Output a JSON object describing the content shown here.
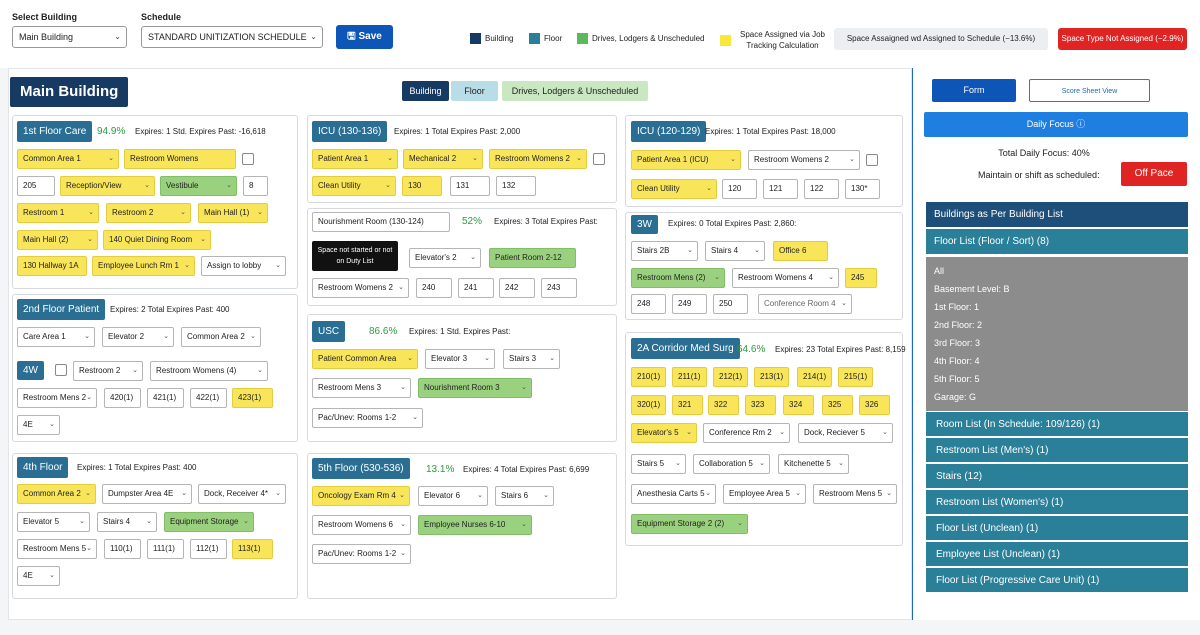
{
  "header": {
    "select_building_label": "Select Building",
    "building_value": "Main Building",
    "schedule_label": "Schedule",
    "schedule_value": "STANDARD UNITIZATION SCHEDULE",
    "save_label": "Save",
    "legend": [
      {
        "label": "Building",
        "color": "#173a63"
      },
      {
        "label": "Floor",
        "color": "#2a7f99"
      },
      {
        "label": "Drives, Lodgers & Unscheduled",
        "color": "#5cb85c"
      },
      {
        "label": "Space Assigned via Job Tracking Calculation",
        "color": "#f7e83a"
      }
    ],
    "badge_assigned": "Space Assaigned wd Assigned to Schedule (−13.6%)",
    "badge_not_assigned": "Space Type Not Assigned (−2.9%)"
  },
  "main": {
    "title": "Main Building",
    "tabs": {
      "building": "Building",
      "floor": "Floor",
      "drives": "Drives, Lodgers & Unscheduled"
    }
  },
  "panels": {
    "p1": {
      "title": "1st Floor Care",
      "pct": "94.9%",
      "exp": "Expires: 1 Std. Expires Past: -16,618",
      "c": [
        "Common Area 1",
        "Restroom Womens",
        "205",
        "Reception/View",
        "Vestibule",
        "8",
        "Restroom 1",
        "Restroom 2",
        "Main Hall (1)",
        "Main Hall (2)",
        "140 Quiet Dining Room",
        "130 Hallway 1A",
        "Employee Lunch Rm 1",
        "Assign to lobby"
      ]
    },
    "p2": {
      "title": "2nd Floor Patient",
      "exp": "Expires: 2 Total Expires Past: 400",
      "c": [
        "Care Area 1",
        "Elevator 2",
        "Common Area 2",
        "4W",
        "Restroom 2",
        "Restroom Womens (4)",
        "Restroom Mens 2",
        "420(1)",
        "421(1)",
        "422(1)",
        "423(1)",
        "4E"
      ]
    },
    "p3": {
      "title": "4th Floor",
      "exp": "Expires: 1 Total Expires Past: 400",
      "c": [
        "Common Area 2",
        "Dumpster Area 4E",
        "Dock, Receiver 4*",
        "Elevator 5",
        "Stairs 4",
        "Equipment Storage",
        "Restroom Mens 5",
        "110(1)",
        "111(1)",
        "112(1)",
        "113(1)",
        "4E"
      ]
    },
    "p4": {
      "title": "ICU (130-136)",
      "exp": "Expires: 1 Total Expires Past: 2,000",
      "c": [
        "Patient Area 1",
        "Mechanical 2",
        "Restroom Womens 2",
        "Clean Utility",
        "130",
        "131",
        "132"
      ]
    },
    "p5": {
      "title": "Nourishment Room (130-124)",
      "pct": "52%",
      "exp": "Expires: 3 Total Expires Past:",
      "dark": "Space not started or not on Duty List",
      "c": [
        "Elevator's 2",
        "Patient Room 2-12",
        "Restroom Womens 2",
        "240",
        "241",
        "242",
        "243"
      ]
    },
    "p6": {
      "title": "USC",
      "pct": "86.6%",
      "exp": "Expires: 1 Std. Expires Past:",
      "c": [
        "Patient Common Area",
        "Elevator 3",
        "Stairs 3",
        "Restroom Mens 3",
        "Nourishment Room 3",
        "Pac/Unev: Rooms 1-2"
      ]
    },
    "p7": {
      "title": "5th Floor (530-536)",
      "pct": "13.1%",
      "exp": "Expires: 4 Total Expires Past: 6,699",
      "c": [
        "Oncology Exam Rm 4",
        "Elevator 6",
        "Stairs 6",
        "Restroom Womens 6",
        "Employee Nurses 6-10",
        "Pac/Unev: Rooms 1-2"
      ]
    },
    "p8": {
      "title": "ICU (120-129)",
      "exp": "Expires: 1 Total Expires Past: 18,000",
      "c": [
        "Patient Area 1 (ICU)",
        "Restroom Womens 2",
        "Clean Utility",
        "120",
        "121",
        "122",
        "130*"
      ]
    },
    "p9": {
      "title": "3W",
      "exp": "Expires: 0 Total Expires Past: 2,860:",
      "c": [
        "Stairs 2B",
        "Stairs 4",
        "Office 6",
        "Restroom Mens (2)",
        "Restroom Womens 4",
        "245",
        "248",
        "249",
        "250",
        "Conference Room 4"
      ]
    },
    "p10": {
      "title": "2A Corridor Med Surg",
      "pct": "64.6%",
      "exp": "Expires: 23 Total Expires Past: 8,159",
      "c": [
        "210(1)",
        "211(1)",
        "212(1)",
        "213(1)",
        "214(1)",
        "215(1)",
        "320(1)",
        "321",
        "322",
        "323",
        "324",
        "325",
        "326",
        "Elevator's 5",
        "Conference Rm 2",
        "Dock, Reciever 5",
        "Stairs 5",
        "Collaboration 5",
        "Kitchenette 5",
        "Anesthesia Carts 5",
        "Employee Area 5",
        "Restroom Mens 5",
        "Equipment Storage 2 (2)"
      ]
    }
  },
  "side": {
    "form": "Form",
    "score": "Score Sheet View",
    "daily_focus": "Daily Focus",
    "total_focus": "Total Daily Focus: 40%",
    "maintain": "Maintain or shift as scheduled:",
    "off_pace": "Off Pace",
    "list_title": "Buildings as Per Building List",
    "items": [
      "Floor List (Floor / Sort) (8)",
      "Room List (In Schedule:  109/126) (1)",
      "Restroom List (Men's) (1)",
      "Stairs (12)",
      "Restroom List (Women's) (1)",
      "Floor List (Unclean) (1)",
      "Employee List (Unclean) (1)",
      "Floor List (Progressive Care Unit) (1)"
    ],
    "floors": [
      "All",
      "Basement Level: B",
      "1st Floor: 1",
      "2nd Floor: 2",
      "3rd Floor: 3",
      "4th Floor: 4",
      "5th Floor: 5",
      "Garage: G"
    ]
  }
}
